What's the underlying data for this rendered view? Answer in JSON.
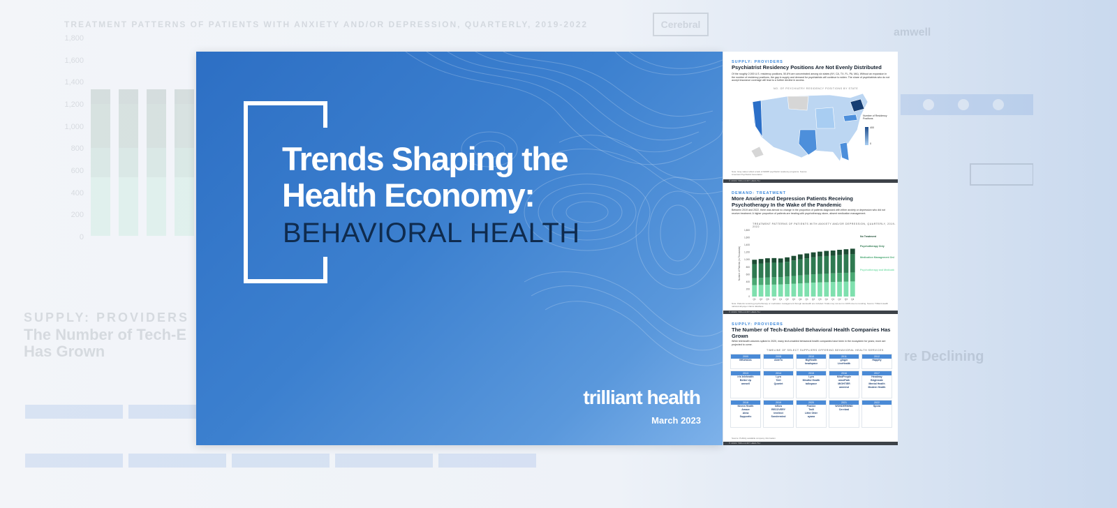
{
  "background": {
    "title": "TREATMENT PATTERNS OF PATIENTS WITH ANXIETY AND/OR DEPRESSION, QUARTERLY, 2019-2022",
    "y_ticks": [
      "1,800",
      "1,600",
      "1,400",
      "1,200",
      "1,000",
      "800",
      "600",
      "400",
      "200",
      "0"
    ],
    "brand_left": "Cerebral",
    "brand_right": "amwell",
    "heading_tag": "SUPPLY: PROVIDERS",
    "heading": "The Number of Tech-E Has Grown",
    "heading_right": "re Declining"
  },
  "slide": {
    "title_line1": "Trends Shaping the",
    "title_line2": "Health Economy:",
    "subtitle": "BEHAVIORAL HEALTH",
    "logo": "trilliant health",
    "date": "March 2023"
  },
  "panel1": {
    "tag": "SUPPLY: PROVIDERS",
    "heading": "Psychiatrist Residency Positions Are Not Evenly Distributed",
    "body": "Of the roughly 2,000 U.S. residency positions, 50.8% are concentrated among six states (NY, CA, TX, FL, PA, MA). Without an expansion in the number of residency positions, the gap in supply and demand for psychiatrists will continue to widen. The share of psychiatrists who do not accept insurance coverage will lead to a further decline in access.",
    "chart_label": "NO. OF PSYCHIATRY RESIDENCY POSITIONS BY STATE",
    "legend_title": "Number of Residency Positions",
    "legend_max": "400",
    "legend_min": "0",
    "note": "Note: Gray states reflect a lack of NRMP psychiatric residency programs. Source: American Psychiatric Association",
    "footer": "© 2023 TRILLIANT HEALTH"
  },
  "panel2": {
    "tag": "DEMAND: TREATMENT",
    "heading": "More Anxiety and Depression Patients Receiving Psychotherapy In the Wake of the Pandemic",
    "body": "Between 2019 and 2022, there was almost no change in the proportion of patients diagnosed with either anxiety or depression who did not receive treatment. A higher proportion of patients are treating with psychotherapy alone, absent medication management.",
    "chart_label": "TREATMENT PATTERNS OF PATIENTS WITH ANXIETY AND/OR DEPRESSION, QUARTERLY, 2019-2022",
    "ylabel": "Number of Patients (in Thousands)",
    "legend": [
      "No Treatment",
      "Psychotherapy Only",
      "Medication Management Only",
      "Psychotherapy and Medication Management"
    ],
    "note": "Note: Patients receiving psychotherapy or medication management through telehealth are included. Totals may not sum to 100% due to rounding. Source: Trilliant Health national all-payer claims database",
    "footer": "© 2023 TRILLIANT HEALTH"
  },
  "panel3": {
    "tag": "SUPPLY: PROVIDERS",
    "heading": "The Number of Tech-Enabled Behavioral Health Companies Has Grown",
    "body": "While telehealth volumes spiked in 2020, many tech-enabled behavioral health companies have been in the ecosystem for years; more are projected to come.",
    "timeline_title": "TIMELINE OF SELECT SUPPLIERS OFFERING BEHAVIORAL HEALTH SERVICES",
    "row1_years": [
      "2000",
      "2009",
      "2010",
      "2011",
      "2012"
    ],
    "row1_brands": [
      [
        "BRAVADA"
      ],
      [
        "AbleTo"
      ],
      [
        "BigHealth",
        "headspace"
      ],
      [
        "ginger",
        "LiveHealth"
      ],
      [
        "Happify"
      ]
    ],
    "row2_years": [
      "2013",
      "2014",
      "2015",
      "2016",
      "2017"
    ],
    "row2_brands": [
      [
        "iris telehealth",
        "Better Up",
        "amwell"
      ],
      [
        "Lyra",
        "TAO",
        "Quartet"
      ],
      [
        "Lyra",
        "Mindful Health",
        "talkspace"
      ],
      [
        "MindPeople",
        "mindPath",
        "MIGHTIER",
        "ammind"
      ],
      [
        "Headway",
        "Brightside",
        "Mental Health",
        "Modern Health"
      ]
    ],
    "row3_years": [
      "2018",
      "2019",
      "2020",
      "2021",
      "2022"
    ],
    "row3_brands": [
      [
        "Nivera Health",
        "Amaze",
        "Alma",
        "Supportiv"
      ],
      [
        "Inflow",
        "RECOVERY",
        "Intellect",
        "Sondermind"
      ],
      [
        "Frankie",
        "Twill",
        "Little Otter",
        "ayana"
      ],
      [
        "WONDERMIND",
        "Cerebral"
      ],
      [
        "Spora"
      ]
    ],
    "note": "Source: Publicly available company information",
    "footer": "© 2023 TRILLIANT HEALTH"
  },
  "chart_data": {
    "type": "bar",
    "title": "TREATMENT PATTERNS OF PATIENTS WITH ANXIETY AND/OR DEPRESSION, QUARTERLY, 2019-2022",
    "ylabel": "Number of Patients (in Thousands)",
    "categories": [
      "Q1",
      "Q2",
      "Q3",
      "Q4",
      "Q1",
      "Q2",
      "Q3",
      "Q4",
      "Q1",
      "Q2",
      "Q3",
      "Q4",
      "Q1",
      "Q2",
      "Q3",
      "Q4"
    ],
    "ylim": [
      0,
      1800
    ],
    "series": [
      {
        "name": "Psychotherapy and Medication Management",
        "values": [
          310,
          315,
          320,
          325,
          330,
          340,
          350,
          360,
          370,
          380,
          385,
          390,
          395,
          400,
          405,
          410
        ]
      },
      {
        "name": "Medication Management Only",
        "values": [
          190,
          195,
          200,
          200,
          200,
          205,
          210,
          215,
          220,
          225,
          230,
          235,
          235,
          240,
          240,
          245
        ]
      },
      {
        "name": "Psychotherapy Only",
        "values": [
          380,
          390,
          395,
          395,
          390,
          400,
          420,
          440,
          450,
          460,
          470,
          475,
          480,
          490,
          495,
          500
        ]
      },
      {
        "name": "No Treatment",
        "values": [
          120,
          120,
          125,
          125,
          115,
          120,
          125,
          130,
          130,
          135,
          135,
          140,
          140,
          140,
          145,
          145
        ]
      }
    ]
  }
}
